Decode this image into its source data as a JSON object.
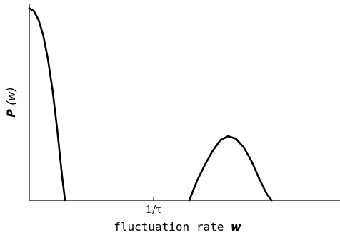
{
  "chart_data": {
    "type": "line",
    "title": "",
    "xlabel": "fluctuation rate",
    "xlabel_symbol": "w",
    "ylabel_symbol": "P",
    "ylabel_arg": "(w)",
    "xlim": [
      0,
      2
    ],
    "ylim": [
      0,
      1
    ],
    "x_ticks": [
      {
        "value": 0.8,
        "label": "1/τ"
      }
    ],
    "y_ticks": [],
    "grid": false,
    "series": [
      {
        "x": [
          0.0,
          0.03,
          0.06,
          0.09,
          0.12,
          0.15,
          0.18,
          0.21,
          0.23
        ],
        "values": [
          0.98,
          0.965,
          0.92,
          0.84,
          0.72,
          0.56,
          0.36,
          0.13,
          0.0
        ],
        "color": "#000000"
      },
      {
        "x": [
          1.03,
          1.08,
          1.13,
          1.18,
          1.23,
          1.28,
          1.33,
          1.38,
          1.43,
          1.48,
          1.53,
          1.56
        ],
        "values": [
          0.0,
          0.1,
          0.18,
          0.252,
          0.307,
          0.327,
          0.314,
          0.27,
          0.2,
          0.11,
          0.03,
          0.0
        ],
        "color": "#000000"
      }
    ]
  }
}
